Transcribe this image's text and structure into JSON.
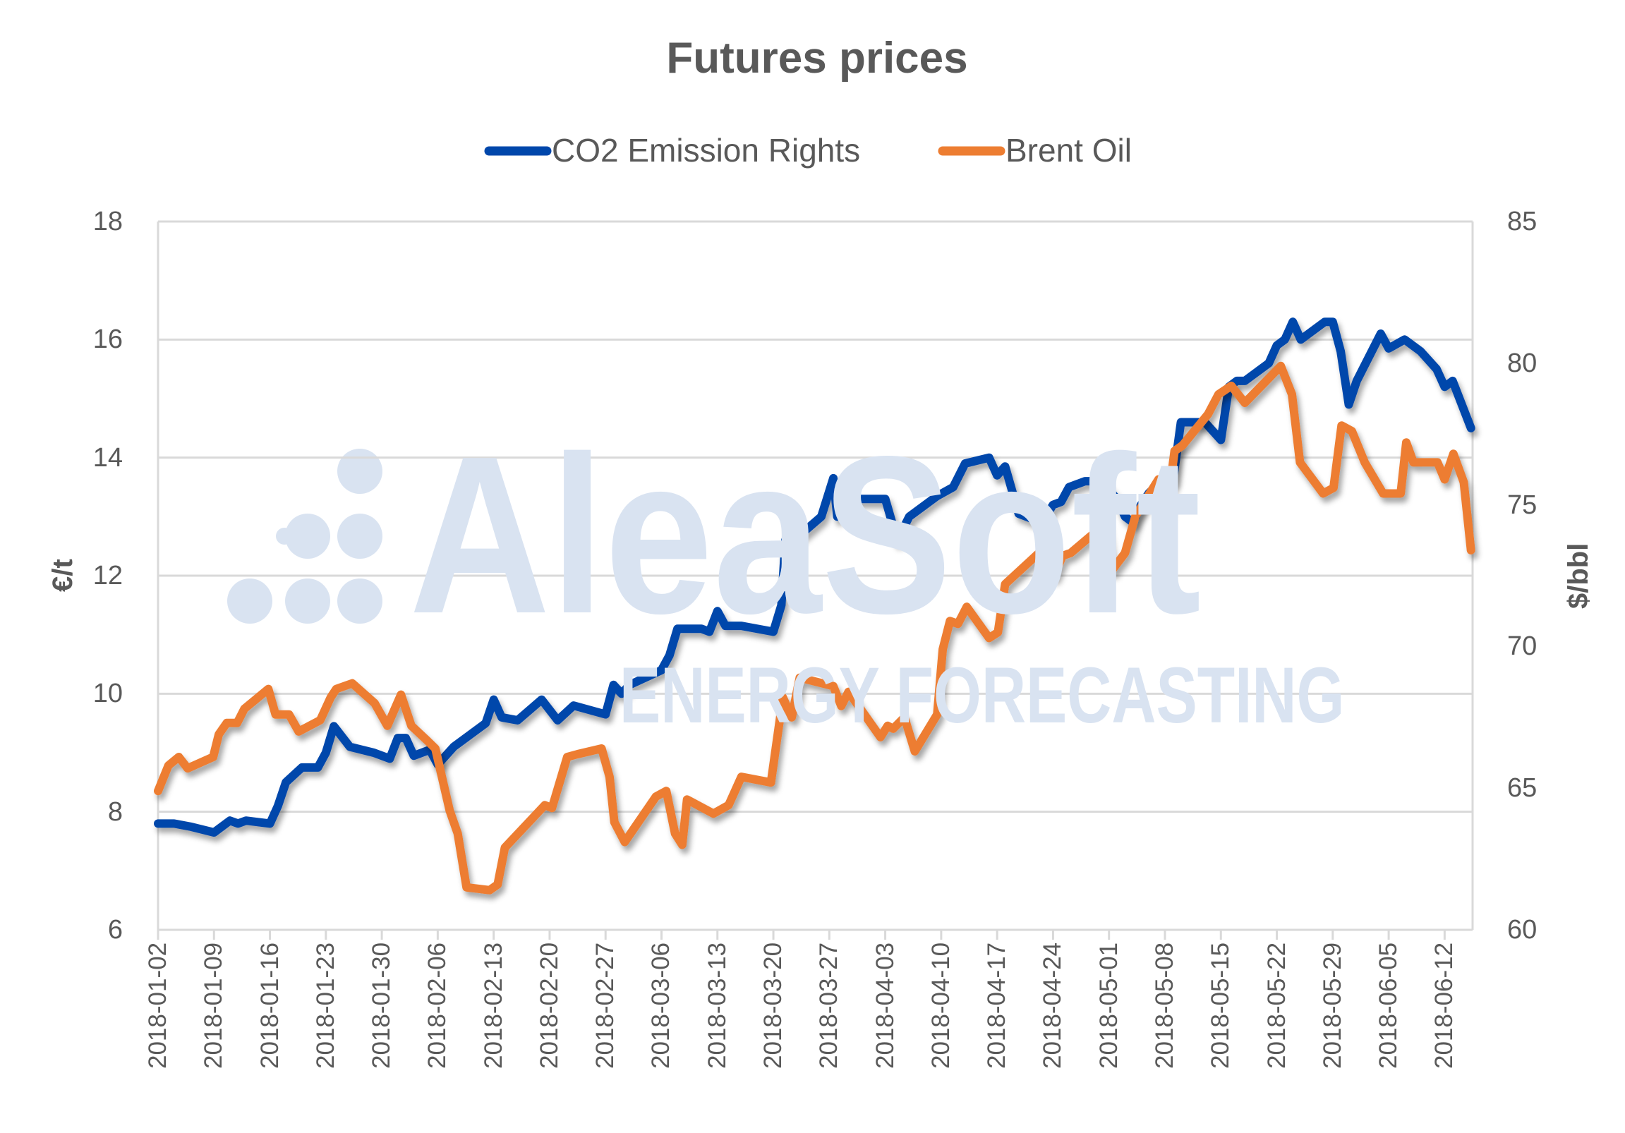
{
  "chart_data": {
    "type": "line",
    "title": "Futures prices",
    "x_unit": "days since 2018-01-02",
    "x_range": [
      0,
      164.5
    ],
    "x_tick_labels": [
      "2018-01-02",
      "2018-01-09",
      "2018-01-16",
      "2018-01-23",
      "2018-01-30",
      "2018-02-06",
      "2018-02-13",
      "2018-02-20",
      "2018-02-27",
      "2018-03-06",
      "2018-03-13",
      "2018-03-20",
      "2018-03-27",
      "2018-04-03",
      "2018-04-10",
      "2018-04-17",
      "2018-04-24",
      "2018-05-01",
      "2018-05-08",
      "2018-05-15",
      "2018-05-22",
      "2018-05-29",
      "2018-06-05",
      "2018-06-12"
    ],
    "y_left": {
      "label": "€/t",
      "range": [
        6,
        18
      ],
      "ticks": [
        "6",
        "8",
        "10",
        "12",
        "14",
        "16",
        "18"
      ]
    },
    "y_right": {
      "label": "$/bbl",
      "range": [
        60,
        85
      ],
      "ticks": [
        "60",
        "65",
        "70",
        "75",
        "80",
        "85"
      ]
    },
    "grid": true,
    "legend_position": "top-center",
    "watermark": {
      "brand": "AleaSoft",
      "tagline": "ENERGY FORECASTING"
    },
    "series": [
      {
        "name": "CO2 Emission Rights",
        "axis": "left",
        "color": "#0047ab",
        "points": [
          [
            0,
            7.8
          ],
          [
            2,
            7.8
          ],
          [
            4,
            7.75
          ],
          [
            7,
            7.65
          ],
          [
            9,
            7.85
          ],
          [
            10,
            7.8
          ],
          [
            11,
            7.85
          ],
          [
            14,
            7.8
          ],
          [
            15,
            8.1
          ],
          [
            16,
            8.5
          ],
          [
            18,
            8.75
          ],
          [
            20,
            8.75
          ],
          [
            21,
            9.0
          ],
          [
            22,
            9.45
          ],
          [
            24,
            9.1
          ],
          [
            27,
            9.0
          ],
          [
            29,
            8.9
          ],
          [
            30,
            9.25
          ],
          [
            31,
            9.25
          ],
          [
            32,
            8.95
          ],
          [
            34,
            9.05
          ],
          [
            35,
            8.8
          ],
          [
            37,
            9.1
          ],
          [
            41,
            9.5
          ],
          [
            42,
            9.9
          ],
          [
            43,
            9.6
          ],
          [
            45,
            9.55
          ],
          [
            48,
            9.9
          ],
          [
            50,
            9.55
          ],
          [
            52,
            9.8
          ],
          [
            56,
            9.65
          ],
          [
            57,
            10.15
          ],
          [
            58,
            10.0
          ],
          [
            59,
            10.15
          ],
          [
            63,
            10.4
          ],
          [
            64,
            10.65
          ],
          [
            65,
            11.1
          ],
          [
            68,
            11.1
          ],
          [
            69,
            11.05
          ],
          [
            70,
            11.4
          ],
          [
            71,
            11.15
          ],
          [
            73,
            11.15
          ],
          [
            77,
            11.05
          ],
          [
            78,
            11.5
          ],
          [
            78.5,
            12.6
          ],
          [
            79,
            12.4
          ],
          [
            80,
            12.65
          ],
          [
            83,
            13.0
          ],
          [
            84.5,
            13.65
          ],
          [
            85,
            13.0
          ],
          [
            86,
            13.3
          ],
          [
            88,
            13.3
          ],
          [
            91,
            13.3
          ],
          [
            92.5,
            12.6
          ],
          [
            94,
            13.0
          ],
          [
            97.5,
            13.35
          ],
          [
            99.5,
            13.5
          ],
          [
            101,
            13.9
          ],
          [
            104,
            14.0
          ],
          [
            105,
            13.7
          ],
          [
            106,
            13.85
          ],
          [
            107.7,
            13.05
          ],
          [
            110.6,
            12.9
          ],
          [
            112,
            13.2
          ],
          [
            113,
            13.25
          ],
          [
            114,
            13.5
          ],
          [
            116,
            13.6
          ],
          [
            118,
            13.6
          ],
          [
            120,
            13.3
          ],
          [
            121,
            13.0
          ],
          [
            122,
            12.9
          ],
          [
            123,
            13.2
          ],
          [
            124,
            13.4
          ],
          [
            125.5,
            13.6
          ],
          [
            127,
            13.6
          ],
          [
            128,
            14.6
          ],
          [
            131,
            14.6
          ],
          [
            133,
            14.3
          ],
          [
            134,
            15.2
          ],
          [
            135,
            15.3
          ],
          [
            136,
            15.3
          ],
          [
            139,
            15.6
          ],
          [
            140,
            15.9
          ],
          [
            141,
            16.0
          ],
          [
            142,
            16.3
          ],
          [
            143,
            16.0
          ],
          [
            146,
            16.3
          ],
          [
            147,
            16.3
          ],
          [
            148,
            15.8
          ],
          [
            149,
            14.9
          ],
          [
            150,
            15.3
          ],
          [
            153,
            16.1
          ],
          [
            154,
            15.85
          ],
          [
            156,
            16.0
          ],
          [
            158,
            15.8
          ],
          [
            160,
            15.5
          ],
          [
            161,
            15.2
          ],
          [
            162,
            15.3
          ],
          [
            164.3,
            14.5
          ]
        ]
      },
      {
        "name": "Brent Oil",
        "axis": "right",
        "color": "#ed7d31",
        "points": [
          [
            0,
            64.9
          ],
          [
            1.3,
            65.8
          ],
          [
            2.6,
            66.1
          ],
          [
            3.7,
            65.7
          ],
          [
            6.9,
            66.1
          ],
          [
            7.6,
            66.9
          ],
          [
            8.6,
            67.3
          ],
          [
            9.9,
            67.3
          ],
          [
            10.8,
            67.8
          ],
          [
            13.8,
            68.5
          ],
          [
            14.7,
            67.6
          ],
          [
            16.4,
            67.6
          ],
          [
            17.6,
            67.0
          ],
          [
            20.3,
            67.4
          ],
          [
            21.6,
            68.2
          ],
          [
            22.3,
            68.5
          ],
          [
            24.3,
            68.7
          ],
          [
            27.1,
            68.0
          ],
          [
            28.7,
            67.2
          ],
          [
            30.4,
            68.3
          ],
          [
            31.7,
            67.2
          ],
          [
            33.6,
            66.7
          ],
          [
            34.7,
            66.4
          ],
          [
            35.6,
            65.3
          ],
          [
            36.5,
            64.2
          ],
          [
            37.5,
            63.4
          ],
          [
            38.6,
            61.5
          ],
          [
            41.5,
            61.4
          ],
          [
            42.5,
            61.6
          ],
          [
            43.4,
            62.9
          ],
          [
            45.4,
            63.5
          ],
          [
            48.4,
            64.4
          ],
          [
            49.3,
            64.3
          ],
          [
            51.2,
            66.1
          ],
          [
            52.5,
            66.2
          ],
          [
            55.5,
            66.4
          ],
          [
            56.5,
            65.4
          ],
          [
            57.1,
            63.8
          ],
          [
            58.4,
            63.1
          ],
          [
            62.3,
            64.7
          ],
          [
            63.6,
            64.9
          ],
          [
            64.7,
            63.4
          ],
          [
            65.6,
            63.0
          ],
          [
            66.2,
            64.6
          ],
          [
            69.5,
            64.1
          ],
          [
            71.4,
            64.4
          ],
          [
            73.0,
            65.4
          ],
          [
            76.7,
            65.2
          ],
          [
            77.3,
            66.4
          ],
          [
            78.2,
            68.2
          ],
          [
            79.3,
            67.5
          ],
          [
            80.3,
            68.9
          ],
          [
            84.5,
            68.6
          ],
          [
            85.5,
            67.9
          ],
          [
            86.4,
            68.4
          ],
          [
            90.4,
            66.8
          ],
          [
            91.3,
            67.2
          ],
          [
            92.0,
            67.1
          ],
          [
            93.4,
            67.5
          ],
          [
            94.7,
            66.3
          ],
          [
            97.5,
            67.6
          ],
          [
            98.2,
            69.9
          ],
          [
            99.1,
            70.9
          ],
          [
            100.1,
            70.8
          ],
          [
            101.2,
            71.4
          ],
          [
            104.0,
            70.3
          ],
          [
            105.1,
            70.5
          ],
          [
            106.0,
            72.2
          ],
          [
            111.0,
            73.5
          ],
          [
            112.1,
            72.5
          ],
          [
            113.2,
            73.2
          ],
          [
            114.2,
            73.3
          ],
          [
            118.4,
            74.3
          ],
          [
            119.4,
            72.7
          ],
          [
            121.0,
            73.3
          ],
          [
            122.3,
            74.6
          ],
          [
            125.2,
            75.9
          ],
          [
            126.2,
            74.7
          ],
          [
            127.2,
            76.9
          ],
          [
            128.2,
            77.1
          ],
          [
            131.4,
            78.2
          ],
          [
            132.7,
            78.9
          ],
          [
            134.3,
            79.2
          ],
          [
            136.0,
            78.6
          ],
          [
            140.5,
            79.9
          ],
          [
            141.9,
            78.9
          ],
          [
            142.9,
            76.5
          ],
          [
            145.8,
            75.4
          ],
          [
            147.1,
            75.6
          ],
          [
            148.1,
            77.8
          ],
          [
            149.4,
            77.6
          ],
          [
            151.0,
            76.5
          ],
          [
            153.3,
            75.4
          ],
          [
            155.5,
            75.4
          ],
          [
            156.2,
            77.2
          ],
          [
            157.1,
            76.5
          ],
          [
            160.1,
            76.5
          ],
          [
            161.0,
            75.9
          ],
          [
            162.1,
            76.8
          ],
          [
            163.4,
            75.8
          ],
          [
            164.3,
            73.4
          ]
        ]
      }
    ]
  }
}
